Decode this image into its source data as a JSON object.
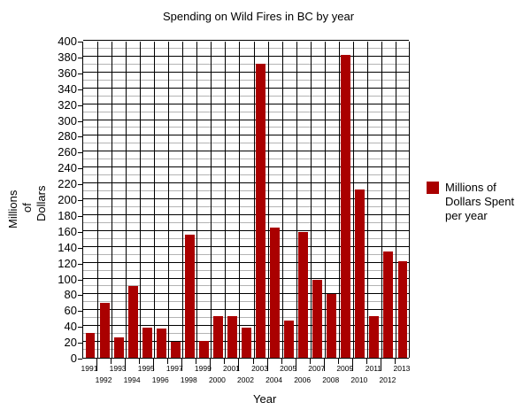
{
  "chart_data": {
    "type": "bar",
    "title": "Spending on Wild Fires in BC by year",
    "xlabel": "Year",
    "ylabel": "Millions of Dollars",
    "ylim": [
      0,
      400
    ],
    "y_major_step": 20,
    "y_minor_step": 10,
    "grid": true,
    "legend_position": "right",
    "categories": [
      "1991",
      "1992",
      "1993",
      "1994",
      "1995",
      "1996",
      "1997",
      "1998",
      "1999",
      "2000",
      "2001",
      "2002",
      "2003",
      "2004",
      "2005",
      "2006",
      "2007",
      "2008",
      "2009",
      "2010",
      "2011",
      "2012",
      "2013"
    ],
    "series": [
      {
        "name": "Millions of Dollars Spent per year",
        "color": "#aa0000",
        "values": [
          31,
          69,
          26,
          90,
          38,
          37,
          20,
          155,
          21,
          52,
          53,
          38,
          371,
          164,
          47,
          159,
          98,
          81,
          382,
          212,
          53,
          134,
          122
        ]
      }
    ],
    "y_ticks": [
      "0",
      "20",
      "40",
      "60",
      "80",
      "100",
      "120",
      "140",
      "160",
      "180",
      "200",
      "220",
      "240",
      "260",
      "280",
      "300",
      "320",
      "340",
      "360",
      "380",
      "400"
    ]
  },
  "title": "Spending on Wild Fires in BC by year",
  "x_axis_title": "Year",
  "y_axis_title_lines": [
    "Millions",
    "of",
    "Dollars"
  ],
  "legend": {
    "label": "Millions of Dollars Spent per year",
    "color": "#aa0000"
  }
}
